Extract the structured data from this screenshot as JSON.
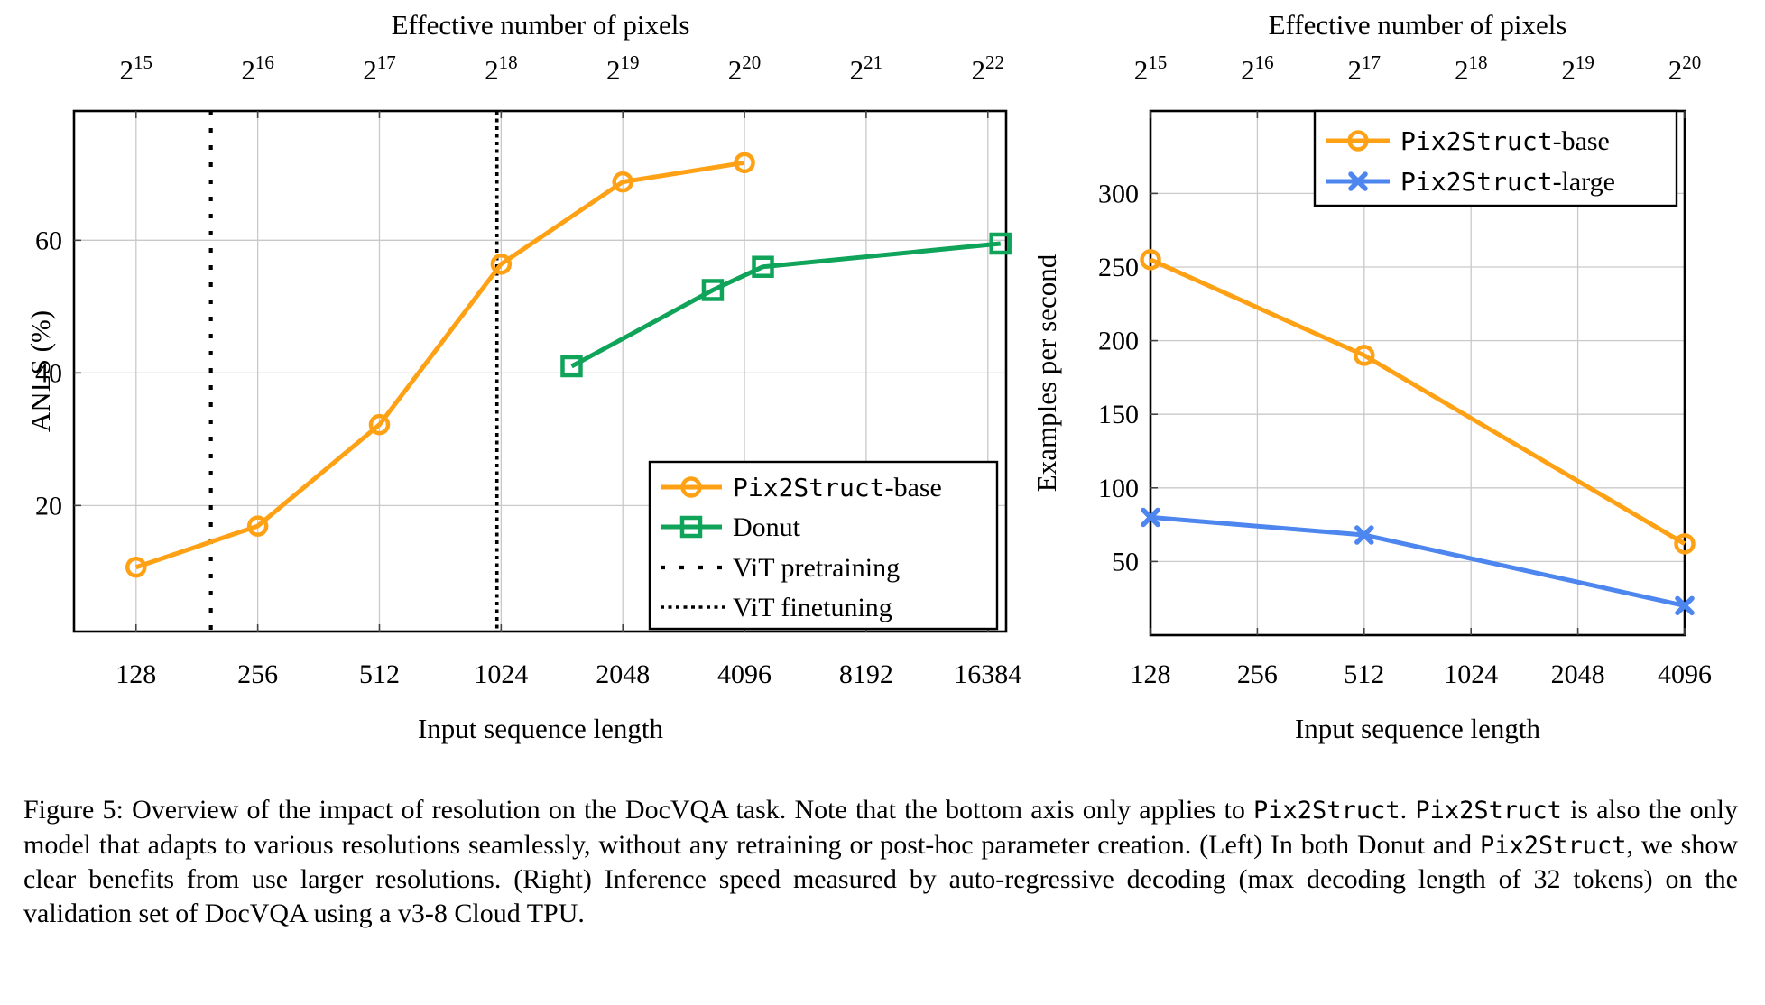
{
  "caption": {
    "segments": [
      {
        "style": "serif",
        "text": "Figure 5:  Overview of the impact of resolution on the DocVQA task.  Note that the bottom axis only applies to "
      },
      {
        "style": "mono",
        "text": "Pix2Struct"
      },
      {
        "style": "serif",
        "text": ". "
      },
      {
        "style": "mono",
        "text": "Pix2Struct"
      },
      {
        "style": "serif",
        "text": " is also the only model that adapts to various resolutions seamlessly, without any retraining or post-hoc parameter creation.  (Left) In both Donut and "
      },
      {
        "style": "mono",
        "text": "Pix2Struct"
      },
      {
        "style": "serif",
        "text": ", we show clear benefits from use larger resolutions. (Right) Inference speed measured by auto-regressive decoding (max decoding length of 32 tokens) on the validation set of DocVQA using a v3-8 Cloud TPU."
      }
    ]
  },
  "colors": {
    "pix2struct_base": "#FFA115",
    "donut": "#10A35A",
    "pix2struct_large": "#4D86EE",
    "grid": "#C9C9C9",
    "axis": "#000000"
  },
  "chart_data": [
    {
      "id": "anls-vs-resolution",
      "type": "line",
      "top_axis_title": "Effective number of pixels",
      "xlabel": "Input sequence length",
      "ylabel": "ANLS (%)",
      "x_scale": "log2",
      "x_ticks": [
        128,
        256,
        512,
        1024,
        2048,
        4096,
        8192,
        16384
      ],
      "top_tick_exponents": [
        15,
        16,
        17,
        18,
        19,
        20,
        21,
        22
      ],
      "y_ticks": [
        20,
        40,
        60
      ],
      "x_log2_range": [
        6.49,
        14.15
      ],
      "ylim": [
        1,
        79.5
      ],
      "grid": true,
      "series": [
        {
          "name": "Pix2Struct-base",
          "label_mono": "Pix2Struct",
          "label_serif": "-base",
          "color": "#FFA115",
          "marker": "circle",
          "points": [
            [
              128,
              10.7
            ],
            [
              256,
              16.9
            ],
            [
              512,
              32.2
            ],
            [
              1024,
              56.4
            ],
            [
              2048,
              68.8
            ],
            [
              4096,
              71.7
            ]
          ]
        },
        {
          "name": "Donut",
          "label_mono": "",
          "label_serif": "Donut",
          "color": "#10A35A",
          "marker": "square",
          "points": [
            [
              1530,
              41
            ],
            [
              3420,
              52.5
            ],
            [
              4550,
              56
            ],
            [
              17600,
              59.5
            ]
          ]
        }
      ],
      "vlines": [
        {
          "label": "ViT pretraining",
          "x": 196,
          "dash": "sparse",
          "color": "#000000"
        },
        {
          "label": "ViT finetuning",
          "x": 1000,
          "dash": "dense",
          "color": "#000000"
        }
      ],
      "legend": {
        "position": "bottom-right",
        "entries": [
          {
            "mono": "Pix2Struct",
            "serif": "-base",
            "sample": "line-circle",
            "color": "#FFA115"
          },
          {
            "mono": "",
            "serif": "Donut",
            "sample": "line-square",
            "color": "#10A35A"
          },
          {
            "mono": "",
            "serif": "ViT pretraining",
            "sample": "dots-sparse",
            "color": "#000000"
          },
          {
            "mono": "",
            "serif": "ViT finetuning",
            "sample": "dots-dense",
            "color": "#000000"
          }
        ]
      }
    },
    {
      "id": "inference-speed",
      "type": "line",
      "top_axis_title": "Effective number of pixels",
      "xlabel": "Input sequence length",
      "ylabel": "Examples per second",
      "x_scale": "log2",
      "x_ticks": [
        128,
        256,
        512,
        1024,
        2048,
        4096
      ],
      "top_tick_exponents": [
        15,
        16,
        17,
        18,
        19,
        20
      ],
      "y_ticks": [
        50,
        100,
        150,
        200,
        250,
        300
      ],
      "x_log2_range": [
        7,
        12
      ],
      "ylim": [
        0,
        356
      ],
      "grid": true,
      "series": [
        {
          "name": "Pix2Struct-base",
          "label_mono": "Pix2Struct",
          "label_serif": "-base",
          "color": "#FFA115",
          "marker": "circle",
          "points": [
            [
              128,
              255
            ],
            [
              512,
              190
            ],
            [
              4096,
              62
            ]
          ]
        },
        {
          "name": "Pix2Struct-large",
          "label_mono": "Pix2Struct",
          "label_serif": "-large",
          "color": "#4D86EE",
          "marker": "x",
          "points": [
            [
              128,
              80
            ],
            [
              512,
              68
            ],
            [
              4096,
              20
            ]
          ]
        }
      ],
      "vlines": [],
      "legend": {
        "position": "top-right",
        "entries": [
          {
            "mono": "Pix2Struct",
            "serif": "-base",
            "sample": "line-circle",
            "color": "#FFA115"
          },
          {
            "mono": "Pix2Struct",
            "serif": "-large",
            "sample": "line-x",
            "color": "#4D86EE"
          }
        ]
      }
    }
  ]
}
